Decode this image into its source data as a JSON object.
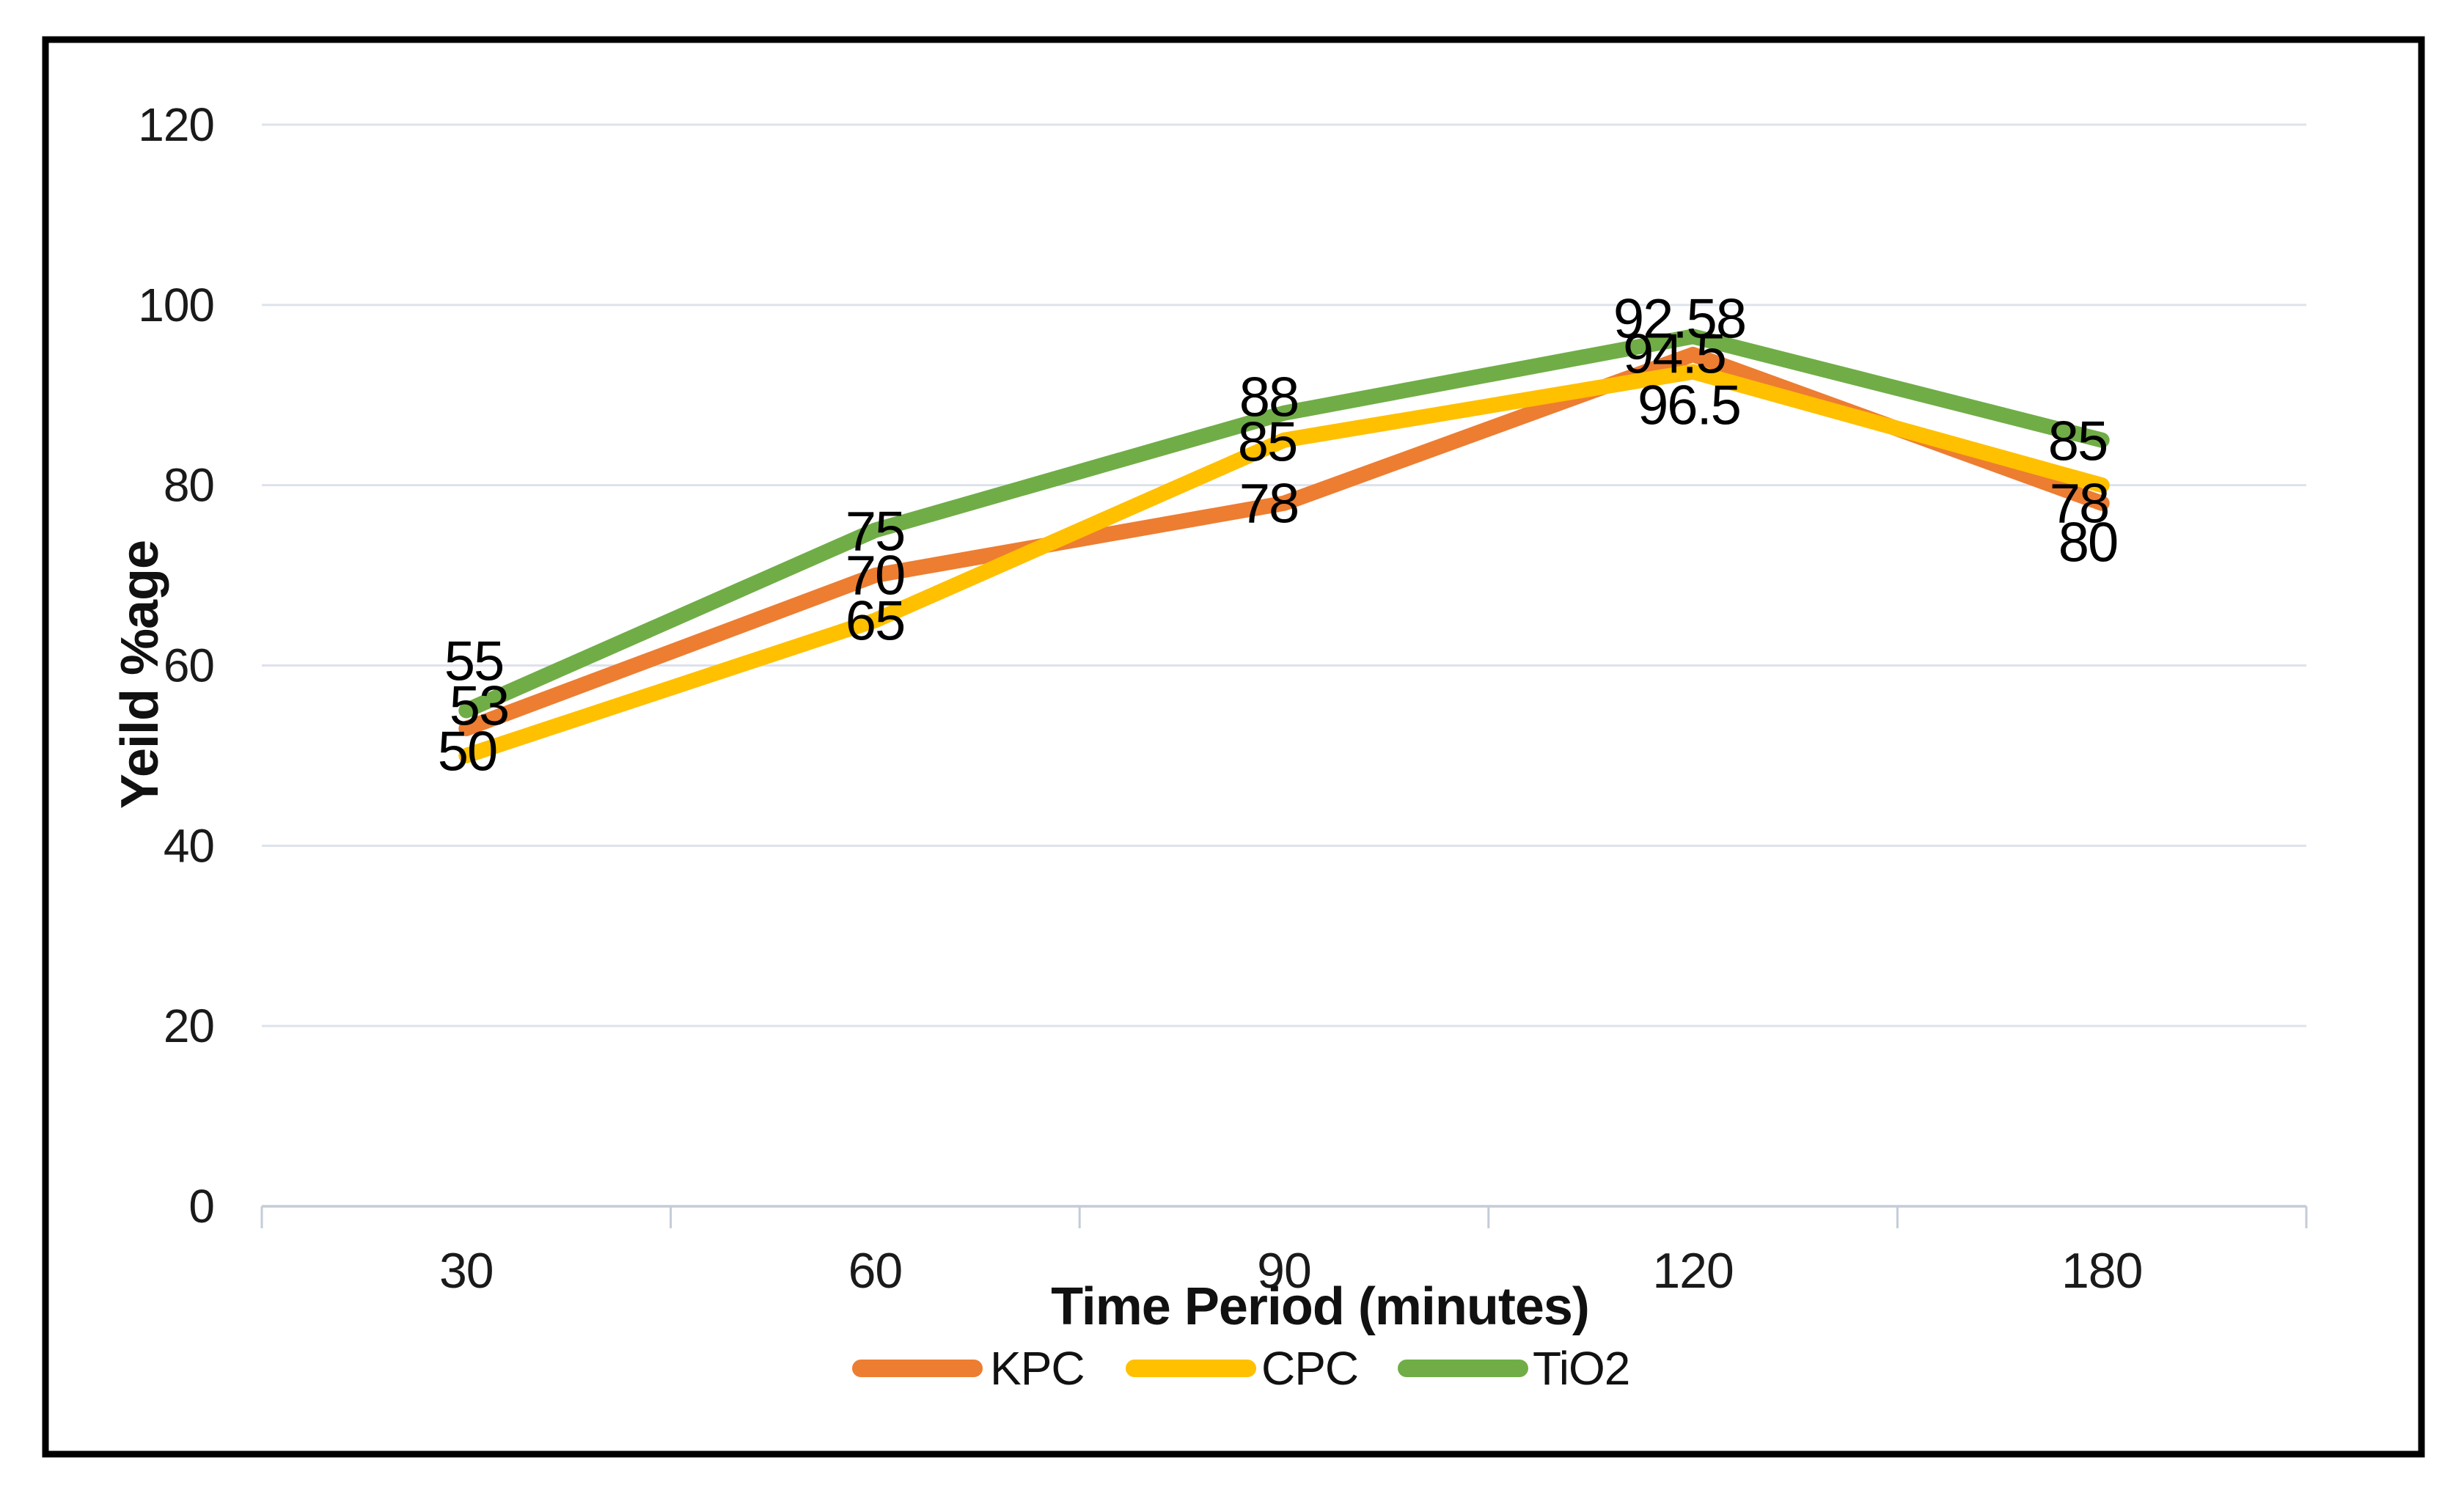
{
  "chart_data": {
    "type": "line",
    "title": "",
    "xlabel": "Time Period (minutes)",
    "ylabel": "Yeild %age",
    "categories": [
      "30",
      "60",
      "90",
      "120",
      "180"
    ],
    "series": [
      {
        "name": "KPC",
        "color": "#ED7D31",
        "values": [
          53,
          70,
          78,
          94.5,
          78
        ],
        "labels": [
          "53",
          "70",
          "78",
          "94.5",
          "78"
        ]
      },
      {
        "name": "CPC",
        "color": "#FFC000",
        "values": [
          50,
          65,
          85,
          92.58,
          80
        ],
        "labels": [
          "50",
          "65",
          "85",
          "92.58",
          "80"
        ]
      },
      {
        "name": "TiO2",
        "color": "#70AD47",
        "values": [
          55,
          75,
          88,
          96.5,
          85
        ],
        "labels": [
          "55",
          "75",
          "88",
          "96.5",
          "85"
        ]
      }
    ],
    "y_axis": {
      "min": 0,
      "max": 120,
      "step": 20,
      "ticks": [
        "0",
        "20",
        "40",
        "60",
        "80",
        "100",
        "120"
      ]
    },
    "grid": true,
    "legend_position": "bottom",
    "style": {
      "grid_color": "#dde2ec",
      "axis_color": "#c4ccd9",
      "border_color": "#000000",
      "label_color": "#000000",
      "background": "#ffffff"
    }
  }
}
